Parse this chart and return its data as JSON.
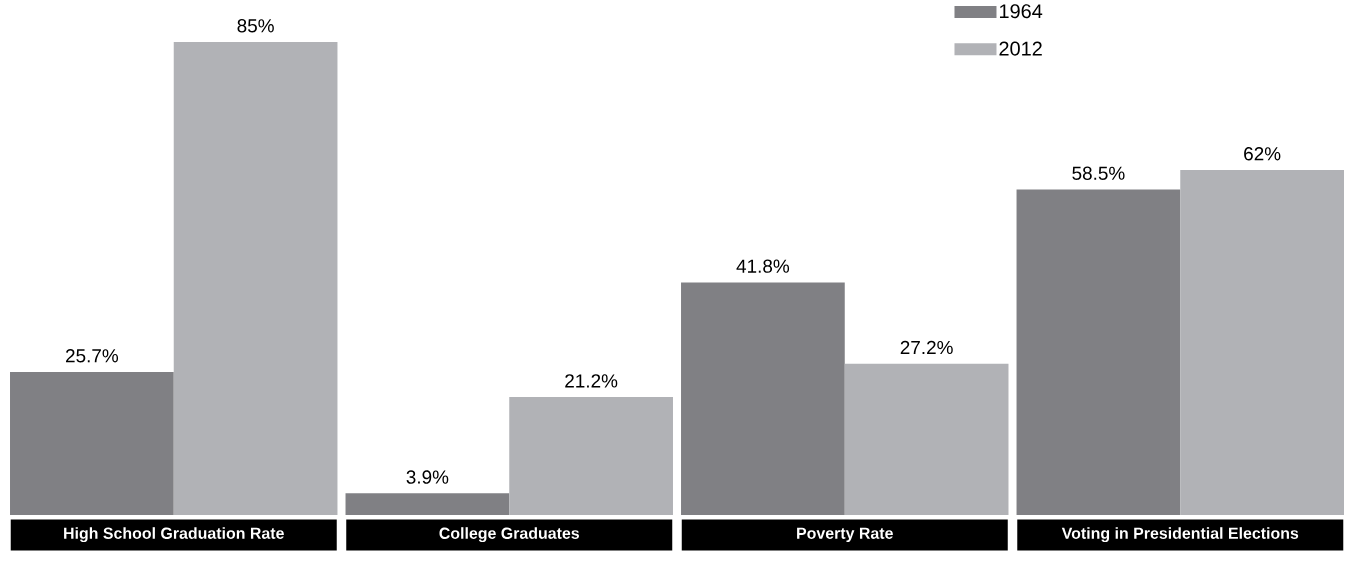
{
  "chart_data": {
    "type": "bar",
    "categories": [
      "High School Graduation Rate",
      "College Graduates",
      "Poverty Rate",
      "Voting in Presidential Elections"
    ],
    "series": [
      {
        "name": "1964",
        "color": "#808084",
        "values": [
          25.7,
          3.9,
          41.8,
          58.5
        ],
        "value_labels": [
          "25.7%",
          "3.9%",
          "41.8%",
          "58.5%"
        ]
      },
      {
        "name": "2012",
        "color": "#b1b2b6",
        "values": [
          85,
          21.2,
          27.2,
          62
        ],
        "value_labels": [
          "85%",
          "21.2%",
          "27.2%",
          "62%"
        ]
      }
    ],
    "legend": "top right"
  }
}
